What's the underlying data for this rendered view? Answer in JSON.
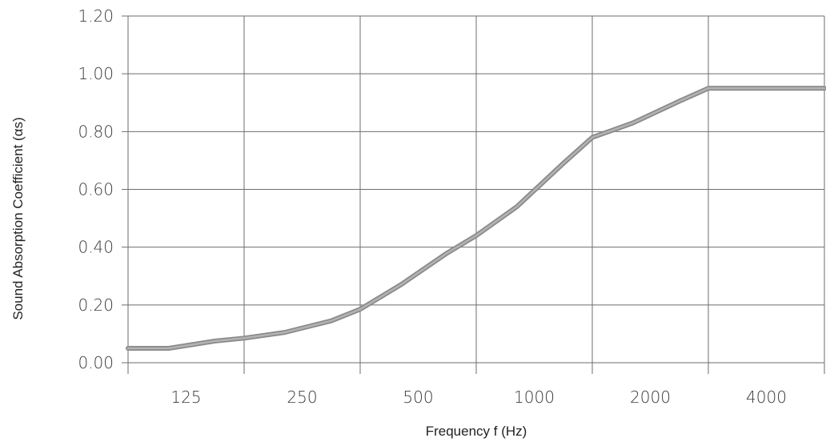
{
  "chart_data": {
    "type": "line",
    "title": "",
    "xlabel": "Frequency f (Hz)",
    "ylabel": "Sound Absorption Coefficient (αs)",
    "categories": [
      "125",
      "250",
      "500",
      "1000",
      "2000",
      "4000"
    ],
    "ylim": [
      0,
      1.2
    ],
    "yticks": [
      "0.00",
      "0.20",
      "0.40",
      "0.60",
      "0.80",
      "1.00",
      "1.20"
    ],
    "grid": true,
    "series": [
      {
        "color": "#8a8a8a",
        "x": [
          0,
          0.35,
          0.75,
          1.0,
          1.35,
          1.75,
          2.0,
          2.35,
          2.75,
          3.0,
          3.35,
          3.75,
          4.0,
          4.35,
          4.75,
          5.0,
          5.35,
          5.75,
          6.0
        ],
        "values": [
          0.05,
          0.05,
          0.075,
          0.085,
          0.105,
          0.145,
          0.185,
          0.27,
          0.38,
          0.44,
          0.54,
          0.69,
          0.78,
          0.83,
          0.905,
          0.95,
          0.95,
          0.95,
          0.95
        ]
      }
    ]
  }
}
